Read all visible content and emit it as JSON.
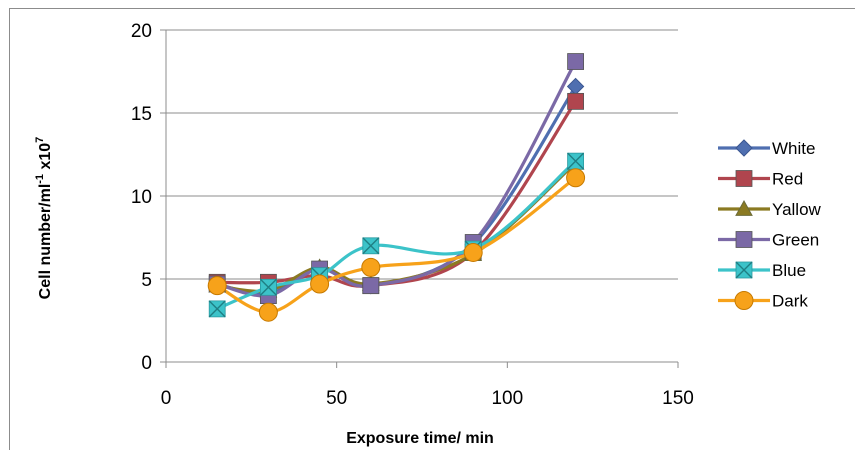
{
  "chart_data": {
    "type": "line",
    "title": "",
    "xlabel": "Exposure time/ min",
    "ylabel": {
      "main": "Cell number/ml",
      "main_sup": "-1",
      "factor": "x10",
      "factor_sup": "7"
    },
    "xlim": [
      0,
      150
    ],
    "ylim": [
      0,
      20
    ],
    "xticks": [
      0,
      50,
      100,
      150
    ],
    "yticks": [
      0,
      5,
      10,
      15,
      20
    ],
    "grid": {
      "x": false,
      "y": true
    },
    "legend_position": "right",
    "x": [
      15,
      30,
      45,
      60,
      90,
      120
    ],
    "series": [
      {
        "name": "White",
        "color": "#4f6fb0",
        "marker": "diamond",
        "values": [
          4.7,
          4.1,
          5.6,
          4.6,
          7.1,
          16.6
        ]
      },
      {
        "name": "Red",
        "color": "#b0454e",
        "marker": "square",
        "values": [
          4.8,
          4.8,
          5.2,
          4.6,
          6.6,
          15.7
        ]
      },
      {
        "name": "Yallow",
        "color": "#8b7a22",
        "marker": "triangle",
        "values": [
          4.6,
          4.3,
          5.7,
          4.7,
          6.5,
          12.0
        ]
      },
      {
        "name": "Green",
        "color": "#7b69a6",
        "marker": "square",
        "values": [
          4.7,
          4.0,
          5.6,
          4.6,
          7.2,
          18.1
        ]
      },
      {
        "name": "Blue",
        "color": "#3cc3c9",
        "marker": "xbox",
        "values": [
          3.2,
          4.5,
          5.2,
          7.0,
          6.8,
          12.1
        ]
      },
      {
        "name": "Dark",
        "color": "#f7a21a",
        "marker": "circle",
        "values": [
          4.6,
          3.0,
          4.7,
          5.7,
          6.6,
          11.1
        ]
      }
    ]
  }
}
